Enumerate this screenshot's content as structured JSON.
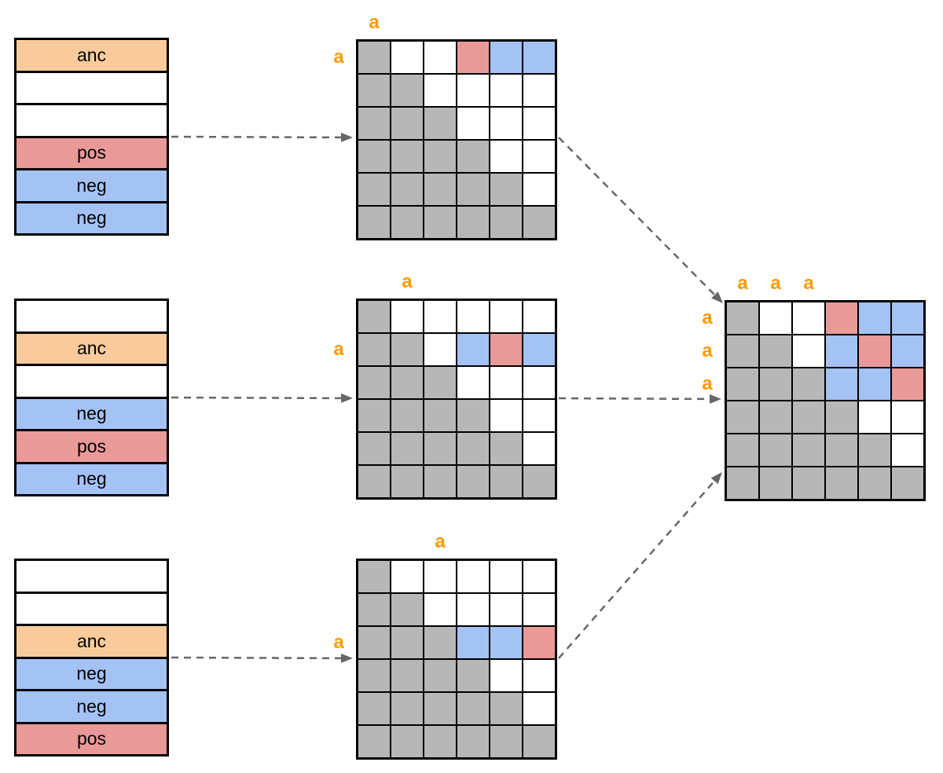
{
  "anchor_label": "a",
  "palette": {
    "anc": "#F9CB9C",
    "pos": "#EA9999",
    "neg": "#A4C2F4",
    "masked": "#B7B7B7",
    "empty": "#FFFFFF",
    "anchor_text": "#FF9900",
    "arrow": "#666666",
    "border": "#000000"
  },
  "cell_palette_map": {
    "m": "masked",
    "w": "empty",
    "p": "pos",
    "n": "neg"
  },
  "examples": [
    {
      "name": "example-1",
      "anchor_index": 0,
      "tokens": [
        {
          "label": "anc",
          "type": "anc"
        },
        {
          "label": "",
          "type": "empty"
        },
        {
          "label": "",
          "type": "empty"
        },
        {
          "label": "pos",
          "type": "pos"
        },
        {
          "label": "neg",
          "type": "neg"
        },
        {
          "label": "neg",
          "type": "neg"
        }
      ],
      "mask": [
        [
          "m",
          "w",
          "w",
          "p",
          "n",
          "n"
        ],
        [
          "m",
          "m",
          "w",
          "w",
          "w",
          "w"
        ],
        [
          "m",
          "m",
          "m",
          "w",
          "w",
          "w"
        ],
        [
          "m",
          "m",
          "m",
          "m",
          "w",
          "w"
        ],
        [
          "m",
          "m",
          "m",
          "m",
          "m",
          "w"
        ],
        [
          "m",
          "m",
          "m",
          "m",
          "m",
          "m"
        ]
      ]
    },
    {
      "name": "example-2",
      "anchor_index": 1,
      "tokens": [
        {
          "label": "",
          "type": "empty"
        },
        {
          "label": "anc",
          "type": "anc"
        },
        {
          "label": "",
          "type": "empty"
        },
        {
          "label": "neg",
          "type": "neg"
        },
        {
          "label": "pos",
          "type": "pos"
        },
        {
          "label": "neg",
          "type": "neg"
        }
      ],
      "mask": [
        [
          "m",
          "w",
          "w",
          "w",
          "w",
          "w"
        ],
        [
          "m",
          "m",
          "w",
          "n",
          "p",
          "n"
        ],
        [
          "m",
          "m",
          "m",
          "w",
          "w",
          "w"
        ],
        [
          "m",
          "m",
          "m",
          "m",
          "w",
          "w"
        ],
        [
          "m",
          "m",
          "m",
          "m",
          "m",
          "w"
        ],
        [
          "m",
          "m",
          "m",
          "m",
          "m",
          "m"
        ]
      ]
    },
    {
      "name": "example-3",
      "anchor_index": 2,
      "tokens": [
        {
          "label": "",
          "type": "empty"
        },
        {
          "label": "",
          "type": "empty"
        },
        {
          "label": "anc",
          "type": "anc"
        },
        {
          "label": "neg",
          "type": "neg"
        },
        {
          "label": "neg",
          "type": "neg"
        },
        {
          "label": "pos",
          "type": "pos"
        }
      ],
      "mask": [
        [
          "m",
          "w",
          "w",
          "w",
          "w",
          "w"
        ],
        [
          "m",
          "m",
          "w",
          "w",
          "w",
          "w"
        ],
        [
          "m",
          "m",
          "m",
          "n",
          "n",
          "p"
        ],
        [
          "m",
          "m",
          "m",
          "m",
          "w",
          "w"
        ],
        [
          "m",
          "m",
          "m",
          "m",
          "m",
          "w"
        ],
        [
          "m",
          "m",
          "m",
          "m",
          "m",
          "m"
        ]
      ]
    }
  ],
  "combined": {
    "name": "combined-mask",
    "anchor_rows": [
      0,
      1,
      2
    ],
    "anchor_cols": [
      0,
      1,
      2
    ],
    "mask": [
      [
        "m",
        "w",
        "w",
        "p",
        "n",
        "n"
      ],
      [
        "m",
        "m",
        "w",
        "n",
        "p",
        "n"
      ],
      [
        "m",
        "m",
        "m",
        "n",
        "n",
        "p"
      ],
      [
        "m",
        "m",
        "m",
        "m",
        "w",
        "w"
      ],
      [
        "m",
        "m",
        "m",
        "m",
        "m",
        "w"
      ],
      [
        "m",
        "m",
        "m",
        "m",
        "m",
        "m"
      ]
    ]
  },
  "arrows": [
    {
      "from": "tokens-1",
      "to": "mask-1"
    },
    {
      "from": "tokens-2",
      "to": "mask-2"
    },
    {
      "from": "tokens-3",
      "to": "mask-3"
    },
    {
      "from": "mask-1",
      "to": "combined-mask"
    },
    {
      "from": "mask-2",
      "to": "combined-mask"
    },
    {
      "from": "mask-3",
      "to": "combined-mask"
    }
  ]
}
